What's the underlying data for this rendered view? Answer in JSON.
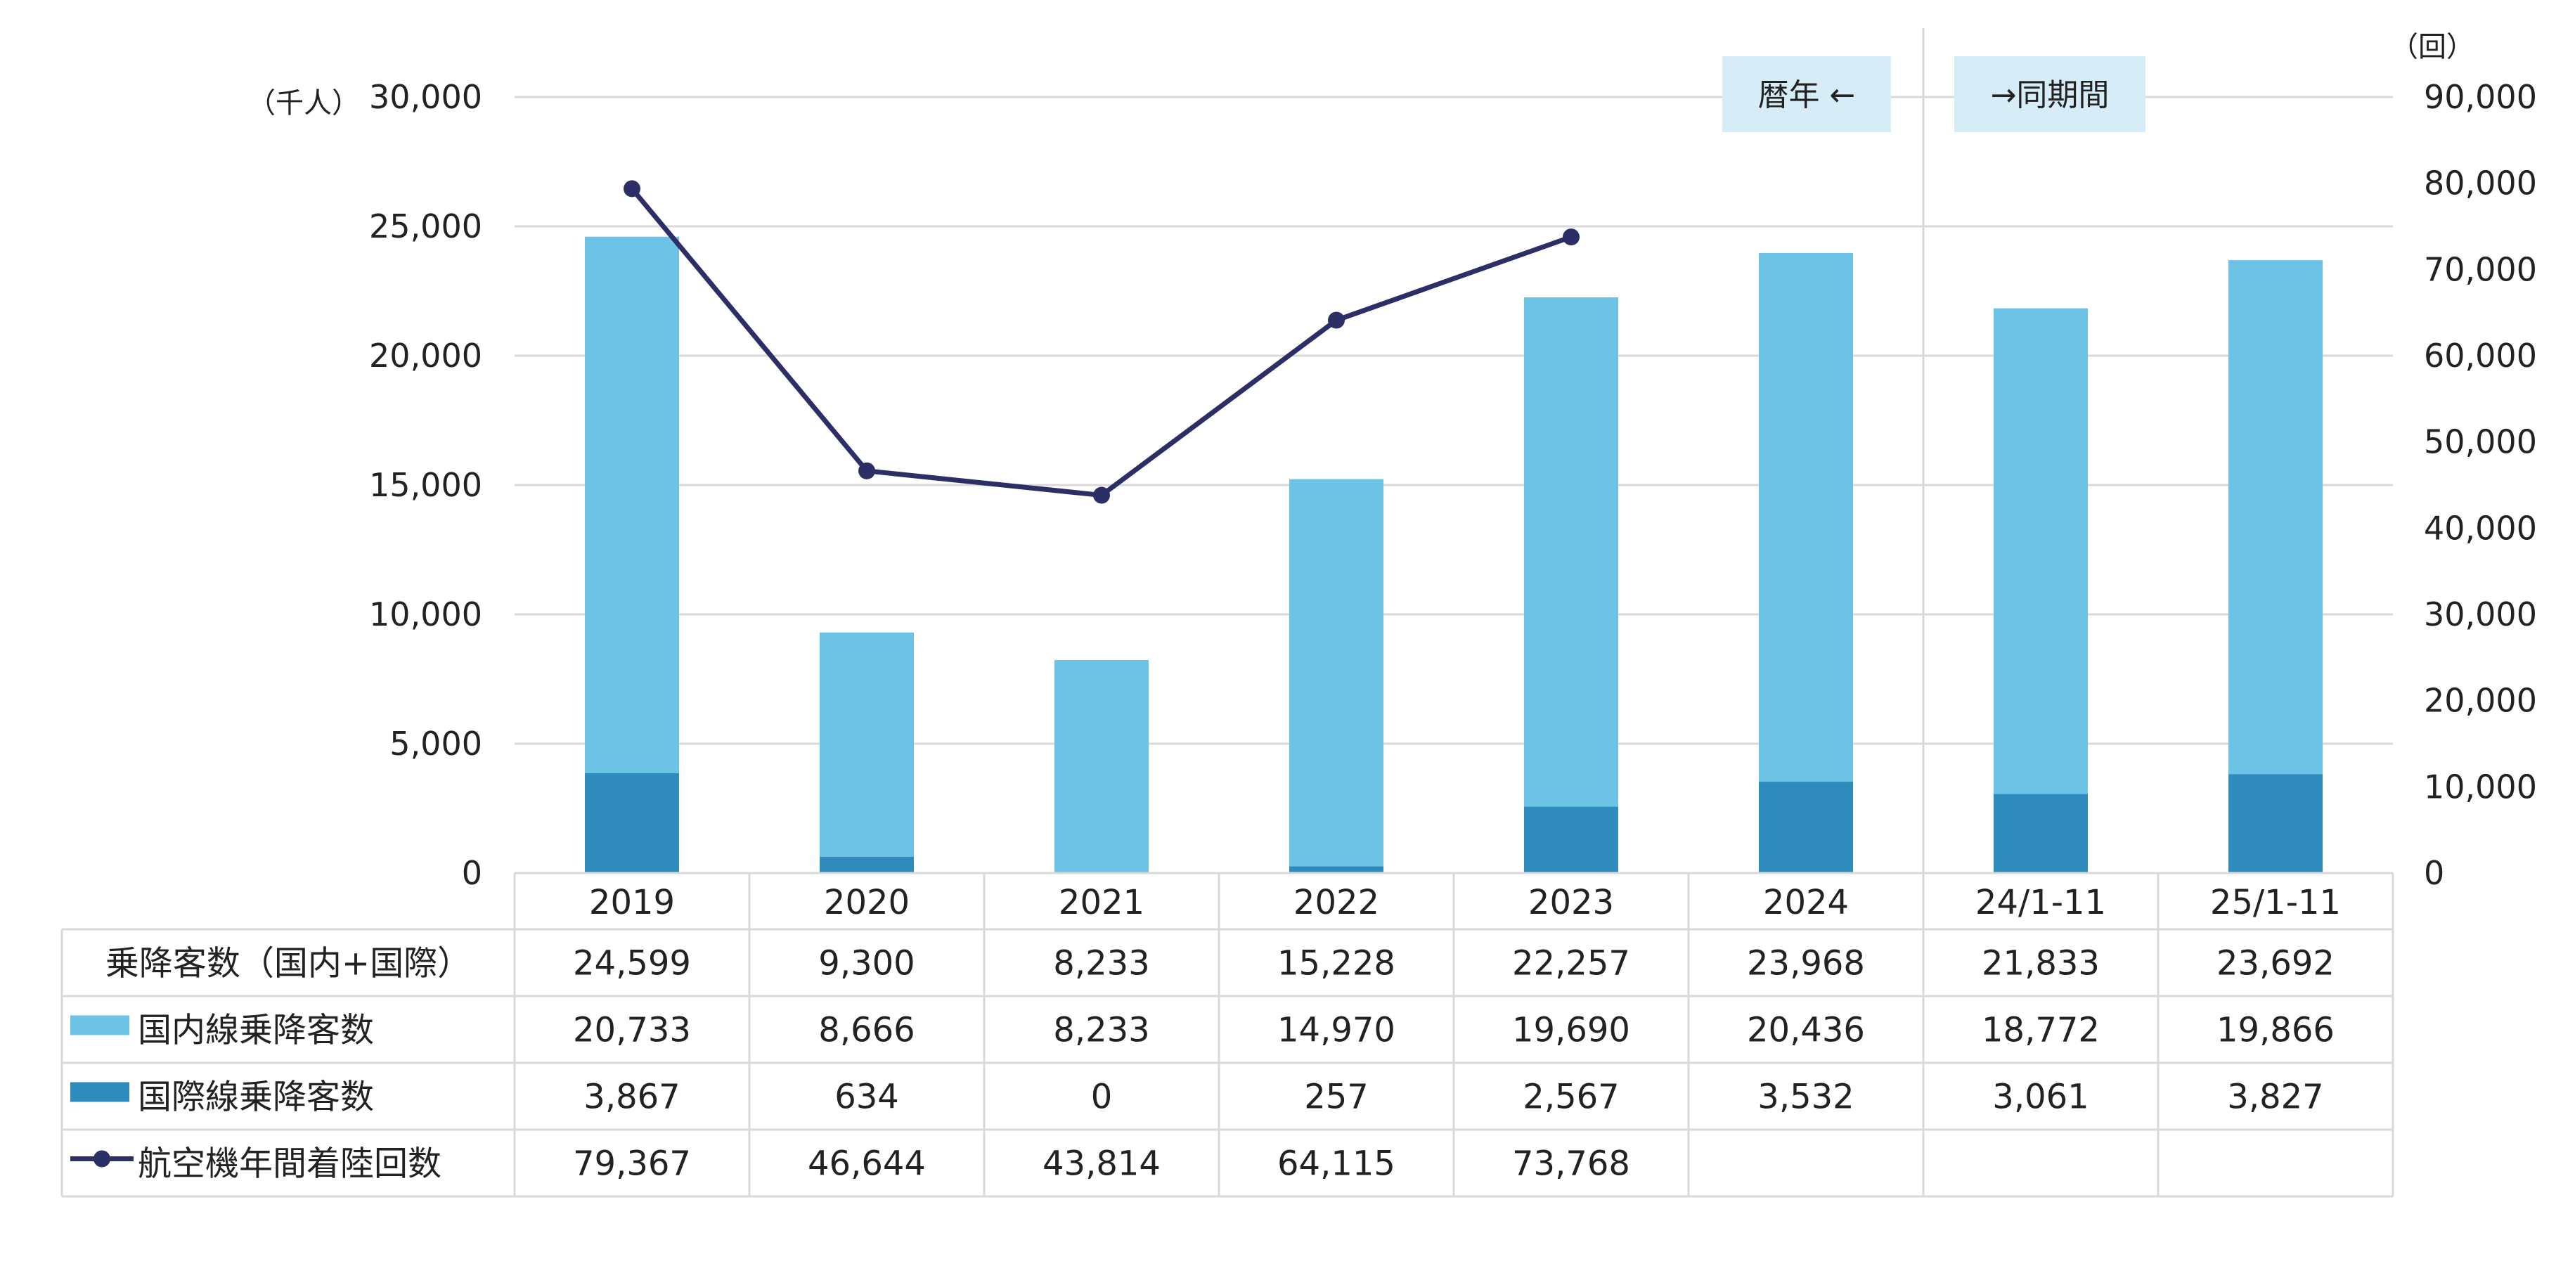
{
  "chart_data": {
    "type": "bar",
    "stacked": true,
    "categories": [
      "2019",
      "2020",
      "2021",
      "2022",
      "2023",
      "2024",
      "24/1-11",
      "25/1-11"
    ],
    "series": [
      {
        "name": "国際線乗降客数",
        "kind": "bar",
        "values": [
          3867,
          634,
          0,
          257,
          2567,
          3532,
          3061,
          3827
        ]
      },
      {
        "name": "国内線乗降客数",
        "kind": "bar",
        "values": [
          20733,
          8666,
          8233,
          14970,
          19690,
          20436,
          18772,
          19866
        ]
      },
      {
        "name": "航空機年間着陸回数",
        "kind": "line",
        "axis": "right",
        "values": [
          79367,
          46644,
          43814,
          64115,
          73768,
          null,
          null,
          null
        ]
      }
    ],
    "total_row": {
      "name": "乗降客数（国内+国際）",
      "values": [
        24599,
        9300,
        8233,
        15228,
        22257,
        23968,
        21833,
        23692
      ]
    },
    "left_axis": {
      "unit": "（千人）",
      "range": [
        0,
        30000
      ],
      "ticks": [
        0,
        5000,
        10000,
        15000,
        20000,
        25000,
        30000
      ]
    },
    "right_axis": {
      "unit": "（回）",
      "range": [
        0,
        90000
      ],
      "ticks": [
        0,
        10000,
        20000,
        30000,
        40000,
        50000,
        60000,
        70000,
        80000,
        90000
      ]
    },
    "annotations": [
      "暦年 ←",
      "→同期間"
    ],
    "grid": true,
    "colors": {
      "domestic": "#6CC3E6",
      "international": "#2E8BBC",
      "line": "#2B2F66",
      "badge": "#D6ECF7",
      "grid": "#D9D9D9"
    }
  }
}
